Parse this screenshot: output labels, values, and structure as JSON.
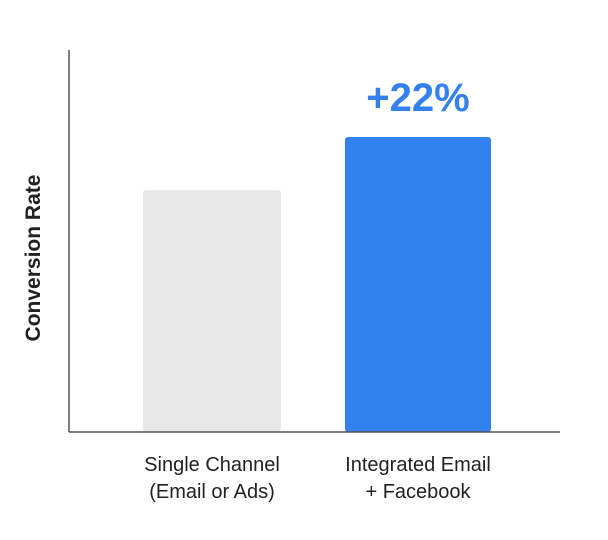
{
  "chart_data": {
    "type": "bar",
    "title": "",
    "xlabel": "",
    "ylabel": "Conversion Rate",
    "categories": [
      [
        "Single Channel",
        "(Email or Ads)"
      ],
      [
        "Integrated Email",
        "+ Facebook"
      ]
    ],
    "values": [
      1.0,
      1.22
    ],
    "ylim": [
      0,
      1.34
    ],
    "grid": false,
    "y_tick_labels": false,
    "annotations": [
      {
        "category_index": 1,
        "text": "+22%"
      }
    ],
    "colors": {
      "bars": [
        "#e8e8e8",
        "#3380f0"
      ],
      "annotation": "#3380f0",
      "axis": "#555555",
      "text": "#222222"
    }
  }
}
